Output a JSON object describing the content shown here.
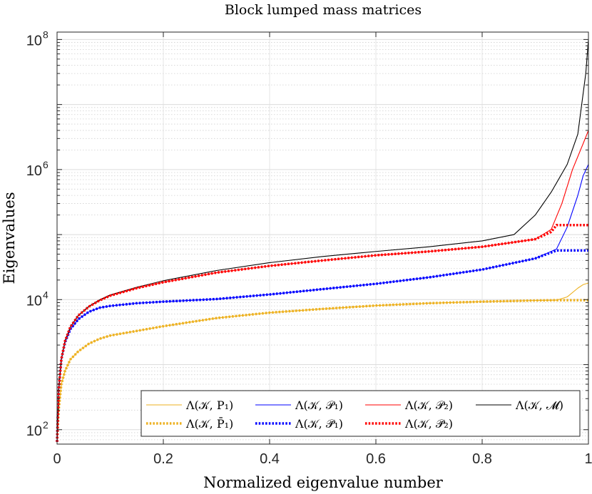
{
  "chart_data": {
    "type": "line",
    "title": "Block lumped mass matrices",
    "xlabel": "Normalized eigenvalue number",
    "ylabel": "Eigenvalues",
    "xlim": [
      0,
      1
    ],
    "ylim": [
      60,
      130000000
    ],
    "yscale": "log",
    "grid": true,
    "x_ticks": [
      "0",
      "0.2",
      "0.4",
      "0.6",
      "0.8",
      "1"
    ],
    "y_ticks": [
      {
        "base": "10",
        "exp": "2"
      },
      {
        "base": "10",
        "exp": "4"
      },
      {
        "base": "10",
        "exp": "6"
      },
      {
        "base": "10",
        "exp": "8"
      }
    ],
    "legend_position": "bottom",
    "series": [
      {
        "name": "Λ(𝒦, P₁)",
        "color": "#edb120",
        "style": "solid",
        "x": [
          0,
          0.003,
          0.008,
          0.015,
          0.025,
          0.04,
          0.06,
          0.08,
          0.1,
          0.15,
          0.2,
          0.3,
          0.4,
          0.5,
          0.6,
          0.7,
          0.8,
          0.9,
          0.94,
          0.96,
          0.98,
          0.99,
          1.0
        ],
        "y": [
          65,
          200,
          500,
          800,
          1200,
          1600,
          2100,
          2500,
          2800,
          3300,
          3900,
          5200,
          6300,
          7200,
          8100,
          8800,
          9300,
          9700,
          9800,
          11000,
          15000,
          17000,
          18000
        ]
      },
      {
        "name": "Λ(𝒦, 𝒫₁)",
        "color": "#0000ff",
        "style": "solid",
        "x": [
          0,
          0.003,
          0.008,
          0.015,
          0.025,
          0.04,
          0.06,
          0.08,
          0.1,
          0.15,
          0.2,
          0.3,
          0.4,
          0.5,
          0.6,
          0.7,
          0.8,
          0.9,
          0.94,
          0.96,
          0.98,
          0.99,
          1.0
        ],
        "y": [
          65,
          400,
          1200,
          2200,
          3500,
          5000,
          6500,
          7500,
          8000,
          8800,
          9300,
          10200,
          12000,
          14500,
          17500,
          22000,
          29000,
          43000,
          60000,
          130000,
          400000,
          800000,
          1200000
        ]
      },
      {
        "name": "Λ(𝒦, 𝒫₂)",
        "color": "#ff0000",
        "style": "solid",
        "x": [
          0,
          0.003,
          0.008,
          0.015,
          0.025,
          0.04,
          0.06,
          0.08,
          0.1,
          0.15,
          0.2,
          0.3,
          0.4,
          0.5,
          0.6,
          0.7,
          0.8,
          0.9,
          0.93,
          0.95,
          0.97,
          0.99,
          1.0
        ],
        "y": [
          65,
          400,
          1200,
          2300,
          3800,
          5700,
          7800,
          9700,
          11500,
          15000,
          18500,
          26000,
          33000,
          40000,
          48000,
          55000,
          65000,
          85000,
          120000,
          300000,
          1000000,
          2500000,
          4000000
        ]
      },
      {
        "name": "Λ(𝒦, 𝓜)",
        "color": "#000000",
        "style": "solid",
        "x": [
          0,
          0.003,
          0.008,
          0.015,
          0.025,
          0.04,
          0.06,
          0.08,
          0.1,
          0.15,
          0.2,
          0.3,
          0.4,
          0.5,
          0.6,
          0.7,
          0.8,
          0.86,
          0.9,
          0.93,
          0.96,
          0.98,
          0.995,
          1.0
        ],
        "y": [
          65,
          400,
          1200,
          2300,
          3800,
          5700,
          7900,
          9900,
          11800,
          15500,
          19500,
          28000,
          37000,
          46000,
          55000,
          65000,
          80000,
          100000,
          200000,
          450000,
          1200000,
          3500000,
          30000000,
          100000000
        ]
      },
      {
        "name": "Λ(𝒦, P̄₁)",
        "color": "#edb120",
        "style": "dotted",
        "x": [
          0,
          0.003,
          0.008,
          0.015,
          0.025,
          0.04,
          0.06,
          0.08,
          0.1,
          0.15,
          0.2,
          0.3,
          0.4,
          0.5,
          0.6,
          0.7,
          0.8,
          0.9,
          0.94,
          1.0
        ],
        "y": [
          65,
          200,
          500,
          800,
          1200,
          1600,
          2100,
          2500,
          2800,
          3300,
          3900,
          5200,
          6300,
          7200,
          8100,
          8800,
          9300,
          9700,
          9800,
          9800
        ]
      },
      {
        "name": "Λ(𝒦, 𝒫̄₁)",
        "color": "#0000ff",
        "style": "dotted",
        "x": [
          0,
          0.003,
          0.008,
          0.015,
          0.025,
          0.04,
          0.06,
          0.08,
          0.1,
          0.15,
          0.2,
          0.3,
          0.4,
          0.5,
          0.6,
          0.7,
          0.8,
          0.9,
          0.94,
          1.0
        ],
        "y": [
          65,
          400,
          1200,
          2200,
          3500,
          5000,
          6500,
          7500,
          8000,
          8800,
          9300,
          10200,
          12000,
          14500,
          17500,
          22000,
          29000,
          43000,
          57000,
          57000
        ]
      },
      {
        "name": "Λ(𝒦, 𝒫̄₂)",
        "color": "#ff0000",
        "style": "dotted",
        "x": [
          0,
          0.003,
          0.008,
          0.015,
          0.025,
          0.04,
          0.06,
          0.08,
          0.1,
          0.15,
          0.2,
          0.3,
          0.4,
          0.5,
          0.6,
          0.7,
          0.8,
          0.9,
          0.93,
          0.94,
          1.0
        ],
        "y": [
          65,
          400,
          1200,
          2300,
          3800,
          5700,
          7800,
          9700,
          11500,
          15000,
          18500,
          26000,
          33000,
          40000,
          48000,
          55000,
          65000,
          85000,
          110000,
          140000,
          140000
        ]
      }
    ]
  }
}
